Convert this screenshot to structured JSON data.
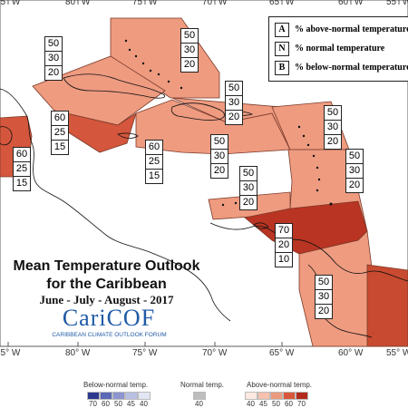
{
  "legend_key": [
    {
      "letter": "A",
      "text": "% above-normal temperature"
    },
    {
      "letter": "N",
      "text": "% normal temperature"
    },
    {
      "letter": "B",
      "text": "% below-normal temperature"
    }
  ],
  "title_line1": "Mean Temperature Outlook",
  "title_line2": "for the Caribbean",
  "season": "June - July - August - 2017",
  "logo": {
    "name": "CariCOF",
    "tagline": "CARIBBEAN CLIMATE OUTLOOK FORUM"
  },
  "longitude_labels": [
    "85° W",
    "80° W",
    "75° W",
    "70° W",
    "65° W",
    "60° W",
    "55° W"
  ],
  "probability_boxes": [
    {
      "region": "bahamas",
      "above": "50",
      "normal": "30",
      "below": "20"
    },
    {
      "region": "cuba-west",
      "above": "50",
      "normal": "30",
      "below": "20"
    },
    {
      "region": "cayman-jamaica",
      "above": "60",
      "normal": "25",
      "below": "15"
    },
    {
      "region": "belize",
      "above": "60",
      "normal": "25",
      "below": "15"
    },
    {
      "region": "jamaica-haiti-south",
      "above": "60",
      "normal": "25",
      "below": "15"
    },
    {
      "region": "hispaniola",
      "above": "50",
      "normal": "30",
      "below": "20"
    },
    {
      "region": "turks-caicos-puerto-rico",
      "above": "50",
      "normal": "30",
      "below": "20"
    },
    {
      "region": "virgin-islands",
      "above": "50",
      "normal": "30",
      "below": "20"
    },
    {
      "region": "leeward-windward",
      "above": "50",
      "normal": "30",
      "below": "20"
    },
    {
      "region": "abc-islands",
      "above": "50",
      "normal": "30",
      "below": "20"
    },
    {
      "region": "trinidad",
      "above": "70",
      "normal": "20",
      "below": "10"
    },
    {
      "region": "guianas",
      "above": "50",
      "normal": "30",
      "below": "20"
    }
  ],
  "color_legend": {
    "below_title": "Below-normal temp.",
    "normal_title": "Normal temp.",
    "above_title": "Above-normal temp.",
    "below_ticks": [
      "70",
      "60",
      "50",
      "45",
      "40"
    ],
    "normal_ticks": [
      "40"
    ],
    "above_ticks": [
      "40",
      "45",
      "50",
      "60",
      "70"
    ],
    "below_colors": [
      "#2b3a8f",
      "#5b68b5",
      "#8c95cf",
      "#b9c0e3",
      "#e3e7f5"
    ],
    "normal_colors": [
      "#bdbdbd"
    ],
    "above_colors": [
      "#fde9e2",
      "#f6c1ad",
      "#ec9a7e",
      "#d8573a",
      "#b22a1b"
    ]
  }
}
